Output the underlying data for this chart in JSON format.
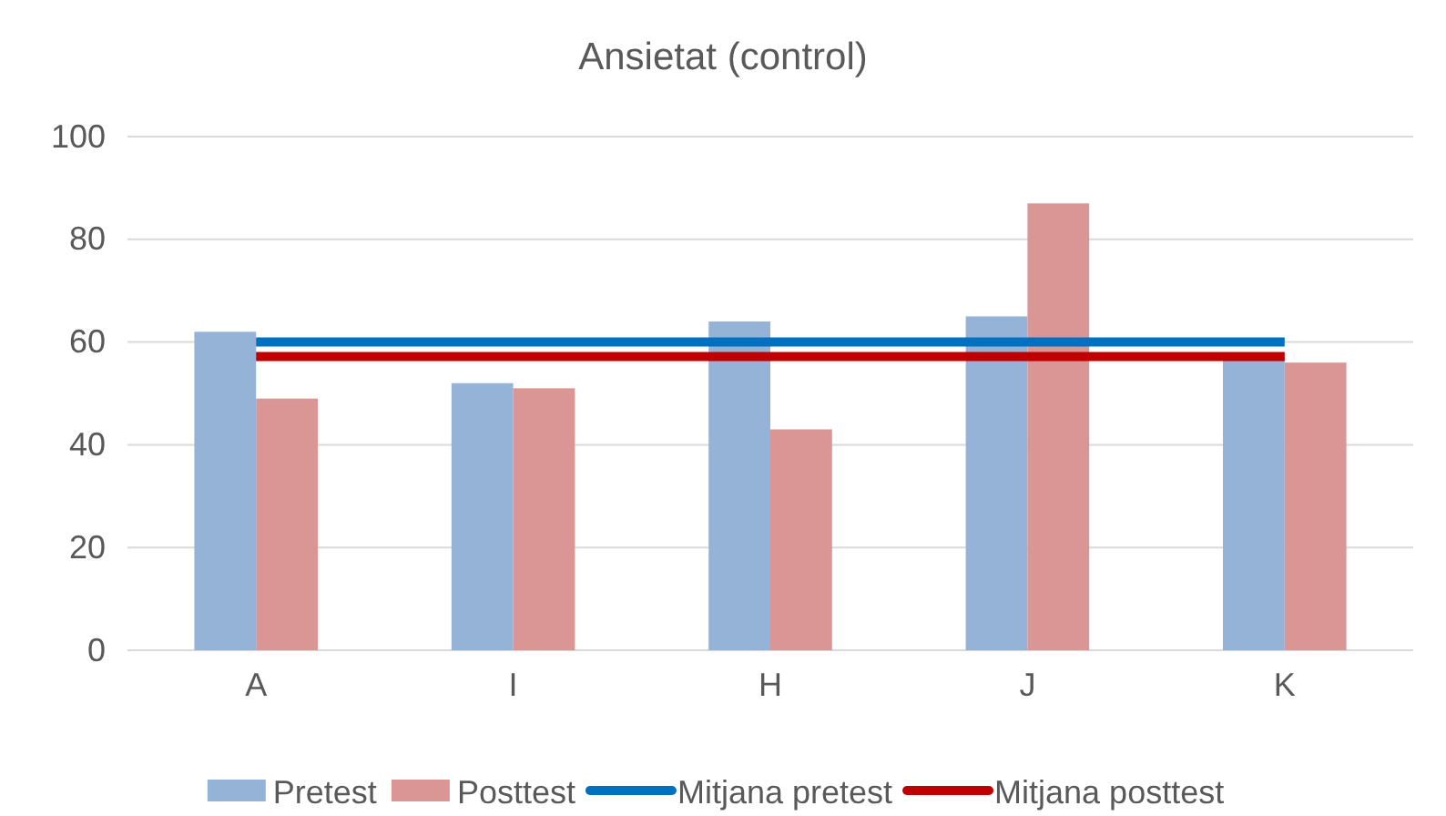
{
  "chart_data": {
    "type": "bar",
    "title": "Ansietat (control)",
    "categories": [
      "A",
      "I",
      "H",
      "J",
      "K"
    ],
    "series": [
      {
        "name": "Pretest",
        "color": "#95b3d7",
        "values": [
          62,
          52,
          64,
          65,
          57
        ]
      },
      {
        "name": "Posttest",
        "color": "#d99694",
        "values": [
          49,
          51,
          43,
          87,
          56
        ]
      },
      {
        "name": "Mitjana pretest",
        "type": "line",
        "color": "#0070c0",
        "values": [
          60,
          60,
          60,
          60,
          60
        ]
      },
      {
        "name": "Mitjana posttest",
        "type": "line",
        "color": "#c00000",
        "values": [
          57.2,
          57.2,
          57.2,
          57.2,
          57.2
        ]
      }
    ],
    "ylim": [
      0,
      100
    ],
    "yticks": [
      0,
      20,
      40,
      60,
      80,
      100
    ],
    "grid": "y",
    "legend": "bottom",
    "marker": "none",
    "line_style": "solid"
  }
}
